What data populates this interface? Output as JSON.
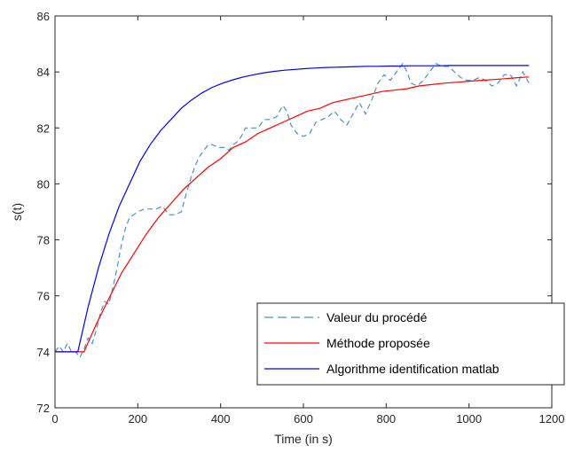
{
  "chart_data": {
    "type": "line",
    "title": "",
    "xlabel": "Time (in s)",
    "ylabel": "s(t)",
    "xlim": [
      0,
      1200
    ],
    "ylim": [
      72,
      86
    ],
    "xticks": [
      0,
      200,
      400,
      600,
      800,
      1000,
      1200
    ],
    "yticks": [
      72,
      74,
      76,
      78,
      80,
      82,
      84,
      86
    ],
    "grid": false,
    "legend_position": "bottom-right",
    "series": [
      {
        "name": "Valeur du procédé",
        "color": "#4a90c8",
        "style": "dashed",
        "x": [
          0,
          10,
          20,
          30,
          40,
          50,
          60,
          70,
          80,
          90,
          100,
          110,
          120,
          130,
          140,
          150,
          160,
          170,
          180,
          190,
          200,
          215,
          230,
          245,
          260,
          275,
          290,
          305,
          320,
          330,
          340,
          350,
          360,
          370,
          380,
          395,
          410,
          420,
          430,
          440,
          450,
          460,
          475,
          490,
          505,
          520,
          535,
          550,
          560,
          570,
          585,
          600,
          615,
          630,
          645,
          660,
          675,
          690,
          705,
          720,
          735,
          750,
          765,
          780,
          795,
          810,
          825,
          840,
          850,
          860,
          875,
          890,
          905,
          920,
          935,
          950,
          965,
          980,
          995,
          1010,
          1025,
          1040,
          1055,
          1070,
          1085,
          1100,
          1115,
          1130,
          1145
        ],
        "y": [
          74.0,
          74.2,
          74.0,
          74.3,
          74.0,
          74.0,
          73.8,
          74.1,
          74.5,
          74.3,
          74.8,
          75.4,
          75.8,
          75.7,
          76.3,
          77.0,
          77.8,
          78.4,
          78.8,
          78.9,
          79.0,
          79.1,
          79.1,
          79.1,
          79.2,
          78.9,
          78.9,
          79.0,
          79.8,
          80.3,
          80.7,
          81.0,
          81.2,
          81.4,
          81.4,
          81.3,
          81.3,
          81.2,
          81.4,
          81.5,
          81.7,
          82.0,
          82.0,
          82.0,
          82.3,
          82.3,
          82.4,
          82.8,
          82.6,
          82.1,
          81.8,
          81.7,
          81.8,
          82.2,
          82.3,
          82.4,
          82.6,
          82.3,
          82.1,
          82.5,
          82.9,
          82.5,
          83.0,
          83.6,
          83.9,
          83.7,
          84.0,
          84.3,
          84.0,
          83.6,
          83.5,
          83.7,
          84.0,
          84.3,
          84.2,
          84.2,
          84.0,
          83.8,
          83.7,
          83.7,
          83.8,
          83.7,
          83.5,
          83.6,
          83.9,
          83.9,
          83.5,
          84.0,
          83.6
        ]
      },
      {
        "name": "Méthode proposée",
        "color": "#ff0000",
        "style": "solid",
        "x": [
          0,
          70,
          100,
          130,
          160,
          190,
          220,
          250,
          280,
          310,
          340,
          370,
          400,
          430,
          460,
          490,
          520,
          550,
          580,
          610,
          640,
          670,
          700,
          730,
          760,
          790,
          820,
          850,
          880,
          910,
          940,
          970,
          1000,
          1030,
          1060,
          1090,
          1120,
          1145
        ],
        "y": [
          74.0,
          74.0,
          75.0,
          75.9,
          76.8,
          77.5,
          78.2,
          78.8,
          79.3,
          79.8,
          80.2,
          80.6,
          80.9,
          81.3,
          81.5,
          81.8,
          82.0,
          82.2,
          82.4,
          82.6,
          82.7,
          82.9,
          83.0,
          83.1,
          83.2,
          83.3,
          83.35,
          83.4,
          83.5,
          83.55,
          83.6,
          83.63,
          83.67,
          83.7,
          83.73,
          83.76,
          83.8,
          83.82
        ]
      },
      {
        "name": "Algorithme identification matlab",
        "color": "#0000ff",
        "style": "solid",
        "x": [
          0,
          55,
          80,
          105,
          130,
          155,
          180,
          205,
          230,
          255,
          280,
          305,
          330,
          355,
          380,
          405,
          430,
          455,
          480,
          505,
          530,
          555,
          580,
          605,
          630,
          655,
          680,
          705,
          730,
          755,
          780,
          805,
          830,
          855,
          880,
          905,
          930,
          955,
          980,
          1005,
          1030,
          1055,
          1080,
          1105,
          1130,
          1145
        ],
        "y": [
          74.0,
          74.0,
          75.6,
          77.0,
          78.2,
          79.2,
          80.0,
          80.8,
          81.4,
          81.9,
          82.3,
          82.7,
          83.0,
          83.25,
          83.45,
          83.6,
          83.72,
          83.82,
          83.9,
          83.97,
          84.02,
          84.06,
          84.09,
          84.12,
          84.14,
          84.16,
          84.17,
          84.18,
          84.19,
          84.2,
          84.2,
          84.21,
          84.21,
          84.22,
          84.22,
          84.22,
          84.22,
          84.23,
          84.23,
          84.23,
          84.23,
          84.23,
          84.23,
          84.23,
          84.23,
          84.23
        ]
      }
    ]
  }
}
